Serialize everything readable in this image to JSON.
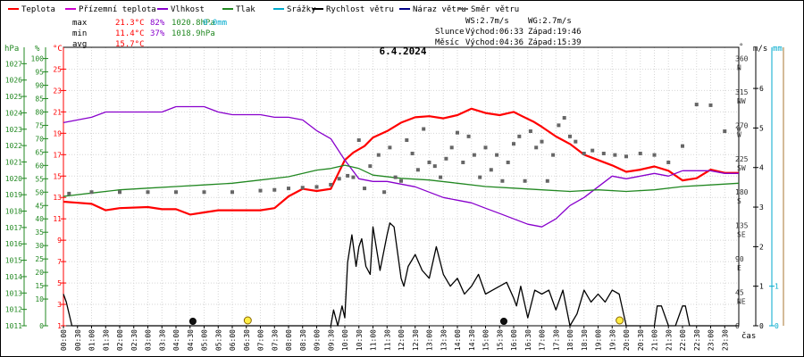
{
  "legend": [
    {
      "name": "Teplota",
      "color": "#ff0000"
    },
    {
      "name": "Přízemní teplota",
      "color": "#cc00cc"
    },
    {
      "name": "Vlhkost",
      "color": "#8800cc"
    },
    {
      "name": "Tlak",
      "color": "#228822"
    },
    {
      "name": "Srážky",
      "color": "#00aacc"
    },
    {
      "name": "Rychlost větru",
      "color": "#000000"
    },
    {
      "name": "Náraz větru",
      "color": "#000088"
    },
    {
      "name": "Směr větru",
      "color": "#666666"
    }
  ],
  "stats": {
    "max": {
      "label": "max",
      "temp": "21.3°C",
      "hum": "82%",
      "press": "1020.8hPa",
      "rain": "0.0mm"
    },
    "min": {
      "label": "min",
      "temp": "11.4°C",
      "hum": "37%",
      "press": "1018.9hPa"
    },
    "avg": {
      "label": "avg",
      "temp": "15.7°C"
    }
  },
  "wind_info": {
    "ws": "WS:2.7m/s",
    "wg": "WG:2.7m/s",
    "sun_label": "Slunce",
    "sun_rise": "Východ:06:33",
    "sun_set": "Západ:19:46",
    "moon_label": "Měsíc",
    "moon_rise": "Východ:04:36",
    "moon_set": "Západ:15:39"
  },
  "colors": {
    "temp": "#ff0000",
    "hum": "#8800cc",
    "press": "#228822",
    "rain": "#00aacc",
    "wind": "#000000",
    "gust": "#000088",
    "dir": "#666666",
    "grid": "#d6d6d6"
  },
  "chart_data": {
    "type": "line",
    "title": "6.4.2024",
    "xlabel": "čas",
    "x_ticks": [
      "00:00",
      "00:30",
      "01:00",
      "01:30",
      "02:00",
      "02:30",
      "03:00",
      "03:30",
      "04:00",
      "04:30",
      "05:00",
      "05:30",
      "06:00",
      "06:30",
      "07:00",
      "07:30",
      "08:00",
      "08:30",
      "09:00",
      "09:30",
      "10:00",
      "10:30",
      "11:00",
      "11:30",
      "12:00",
      "12:30",
      "13:00",
      "13:30",
      "14:00",
      "14:30",
      "15:00",
      "15:30",
      "16:00",
      "16:30",
      "17:00",
      "17:30",
      "18:00",
      "18:30",
      "19:00",
      "19:30",
      "20:00",
      "20:30",
      "21:00",
      "21:30",
      "22:00",
      "22:30",
      "23:00",
      "23:30"
    ],
    "x_range_hours": [
      0,
      24
    ],
    "axes": {
      "hpa": {
        "label": "hPa",
        "range": [
          1011,
          1028
        ],
        "ticks": [
          1011,
          1012,
          1013,
          1014,
          1015,
          1016,
          1017,
          1018,
          1019,
          1020,
          1021,
          1022,
          1023,
          1024,
          1025,
          1026,
          1027
        ]
      },
      "pct": {
        "label": "%",
        "range": [
          0,
          104.2
        ],
        "ticks": [
          0,
          10,
          15,
          20,
          25,
          30,
          35,
          40,
          45,
          50,
          55,
          60,
          65,
          70,
          75,
          80,
          85,
          90,
          95,
          100
        ]
      },
      "temp": {
        "label": "°C",
        "range": [
          1,
          27.04
        ],
        "ticks": [
          1,
          3,
          5,
          7,
          9,
          11,
          13,
          15,
          17,
          19,
          21,
          23,
          25
        ]
      },
      "dir": {
        "label": "°",
        "range": [
          0,
          375
        ],
        "ticks": [
          0,
          45,
          90,
          135,
          180,
          225,
          270,
          315,
          360
        ],
        "names": [
          "",
          "NE",
          "E",
          "SE",
          "S",
          "SW",
          "W",
          "NW",
          "N"
        ]
      },
      "ms": {
        "label": "m/s",
        "range": [
          0,
          7.04
        ],
        "ticks": [
          0,
          1,
          2,
          3,
          4,
          5,
          6
        ]
      },
      "mm": {
        "label": "mm",
        "range": [
          0,
          7.04
        ],
        "ticks": [
          0,
          1
        ]
      }
    },
    "series": [
      {
        "name": "Teplota",
        "key": "temp",
        "axis": "temp",
        "x": [
          0,
          0.5,
          1,
          1.5,
          2,
          3,
          3.5,
          4,
          4.5,
          5,
          5.5,
          6,
          7,
          7.5,
          8,
          8.5,
          9,
          9.5,
          10,
          10.3,
          10.7,
          11,
          11.5,
          12,
          12.5,
          13,
          13.5,
          14,
          14.5,
          15,
          15.5,
          16,
          16.3,
          16.7,
          17,
          17.5,
          18,
          18.5,
          19,
          19.5,
          20,
          20.5,
          21,
          21.5,
          22,
          22.5,
          23,
          23.5,
          24
        ],
        "y": [
          12.6,
          12.5,
          12.4,
          11.8,
          12.0,
          12.1,
          11.9,
          11.9,
          11.4,
          11.6,
          11.8,
          11.8,
          11.8,
          12.0,
          13.1,
          13.8,
          13.6,
          13.8,
          16.5,
          17.2,
          17.8,
          18.6,
          19.2,
          20.0,
          20.5,
          20.6,
          20.4,
          20.7,
          21.3,
          20.9,
          20.7,
          21.0,
          20.6,
          20.1,
          19.6,
          18.7,
          18.0,
          17.0,
          16.5,
          16.0,
          15.4,
          15.6,
          15.9,
          15.5,
          14.6,
          14.8,
          15.6,
          15.3,
          15.3
        ]
      },
      {
        "name": "Vlhkost",
        "key": "hum",
        "axis": "pct",
        "x": [
          0,
          0.5,
          1,
          1.5,
          2,
          2.5,
          3,
          3.5,
          4,
          4.5,
          5,
          5.5,
          6,
          6.5,
          7,
          7.5,
          8,
          8.5,
          9,
          9.5,
          10,
          10.5,
          11,
          11.5,
          12,
          12.5,
          13,
          13.5,
          14,
          14.5,
          15,
          15.5,
          16,
          16.5,
          17,
          17.5,
          18,
          18.5,
          19,
          19.5,
          20,
          20.5,
          21,
          21.5,
          22,
          22.5,
          23,
          23.5,
          24
        ],
        "y": [
          76,
          77,
          78,
          80,
          80,
          80,
          80,
          80,
          82,
          82,
          82,
          80,
          79,
          79,
          79,
          78,
          78,
          77,
          73,
          70,
          62,
          55,
          54,
          54,
          53,
          52,
          50,
          48,
          47,
          46,
          44,
          42,
          40,
          38,
          37,
          40,
          45,
          48,
          52,
          56,
          55,
          56,
          57,
          56,
          58,
          58,
          58,
          57,
          57
        ]
      },
      {
        "name": "Tlak",
        "key": "press",
        "axis": "hpa",
        "x": [
          0,
          1,
          2,
          3,
          4,
          5,
          6,
          7,
          8,
          9,
          9.5,
          10,
          10.5,
          11,
          12,
          13,
          14,
          15,
          16,
          17,
          18,
          19,
          20,
          21,
          22,
          23,
          24
        ],
        "y": [
          1018.9,
          1019.1,
          1019.3,
          1019.4,
          1019.5,
          1019.6,
          1019.7,
          1019.9,
          1020.1,
          1020.5,
          1020.6,
          1020.8,
          1020.6,
          1020.2,
          1020.0,
          1019.9,
          1019.7,
          1019.5,
          1019.4,
          1019.3,
          1019.2,
          1019.3,
          1019.2,
          1019.3,
          1019.5,
          1019.6,
          1019.7
        ]
      },
      {
        "name": "Rychlost větru",
        "key": "wind",
        "axis": "ms",
        "x": [
          0,
          0.1,
          0.3,
          0.5,
          9.5,
          9.6,
          9.75,
          9.9,
          10.0,
          10.1,
          10.25,
          10.4,
          10.5,
          10.6,
          10.75,
          10.9,
          11.0,
          11.25,
          11.5,
          11.6,
          11.75,
          12.0,
          12.1,
          12.25,
          12.5,
          12.75,
          13.0,
          13.25,
          13.5,
          13.75,
          14.0,
          14.25,
          14.5,
          14.75,
          15.0,
          15.25,
          15.5,
          15.75,
          16.0,
          16.1,
          16.25,
          16.5,
          16.75,
          17.0,
          17.25,
          17.5,
          17.75,
          18.0,
          18.25,
          18.5,
          18.75,
          19.0,
          19.25,
          19.5,
          19.75,
          20.0,
          20.1,
          20.25,
          20.5,
          21.0,
          21.1,
          21.25,
          21.5,
          21.75,
          22.0,
          22.1,
          22.25,
          22.5,
          22.75,
          23.0,
          24
        ],
        "y": [
          0.8,
          0.6,
          0,
          0,
          0,
          0.4,
          0,
          0.5,
          0.2,
          1.6,
          2.3,
          1.5,
          2.0,
          2.2,
          1.5,
          1.3,
          2.5,
          1.4,
          2.3,
          2.6,
          2.5,
          1.2,
          1.0,
          1.5,
          1.8,
          1.4,
          1.2,
          2.0,
          1.3,
          1.0,
          1.2,
          0.8,
          1.0,
          1.3,
          0.8,
          0.9,
          1.0,
          1.1,
          0.7,
          0.5,
          1.0,
          0.2,
          0.9,
          0.8,
          0.9,
          0.4,
          0.9,
          0.0,
          0.3,
          0.9,
          0.6,
          0.8,
          0.6,
          0.9,
          0.8,
          0.0,
          0.0,
          0.0,
          0.0,
          0.0,
          0.5,
          0.5,
          0.0,
          0.0,
          0.5,
          0.5,
          0.0,
          0.0,
          0.0,
          0.0,
          0.0
        ]
      },
      {
        "name": "Směr větru",
        "key": "dir",
        "axis": "dir",
        "x": [
          0.2,
          1,
          2,
          3,
          4,
          5,
          6,
          7,
          7.5,
          8,
          8.5,
          9,
          9.5,
          9.8,
          10.1,
          10.3,
          10.5,
          10.7,
          10.9,
          11.2,
          11.4,
          11.6,
          11.8,
          12.0,
          12.2,
          12.4,
          12.6,
          12.8,
          13.0,
          13.2,
          13.4,
          13.6,
          13.8,
          14.0,
          14.2,
          14.4,
          14.6,
          14.8,
          15.0,
          15.2,
          15.4,
          15.6,
          15.8,
          16.0,
          16.2,
          16.4,
          16.6,
          16.8,
          17.0,
          17.2,
          17.4,
          17.6,
          17.8,
          18.0,
          18.2,
          18.5,
          18.8,
          19.2,
          19.6,
          20.0,
          20.5,
          21.0,
          21.5,
          22.0,
          22.5,
          23.0,
          23.5,
          24
        ],
        "y": [
          178,
          180,
          180,
          180,
          180,
          180,
          180,
          182,
          183,
          185,
          186,
          187,
          190,
          198,
          202,
          200,
          250,
          185,
          215,
          230,
          180,
          240,
          200,
          195,
          250,
          232,
          210,
          265,
          220,
          215,
          200,
          225,
          240,
          260,
          220,
          255,
          230,
          200,
          240,
          210,
          230,
          195,
          220,
          245,
          255,
          195,
          262,
          240,
          248,
          195,
          230,
          270,
          280,
          255,
          248,
          232,
          236,
          232,
          230,
          228,
          232,
          230,
          220,
          242,
          298,
          297,
          262,
          265
        ]
      }
    ],
    "sun_markers": [
      {
        "time": "06:33",
        "label": "Slunce Východ"
      },
      {
        "time": "19:46",
        "label": "Slunce Západ"
      }
    ],
    "moon_markers": [
      {
        "time": "04:36",
        "label": "Měsíc Východ"
      },
      {
        "time": "15:39",
        "label": "Měsíc Západ"
      }
    ]
  }
}
